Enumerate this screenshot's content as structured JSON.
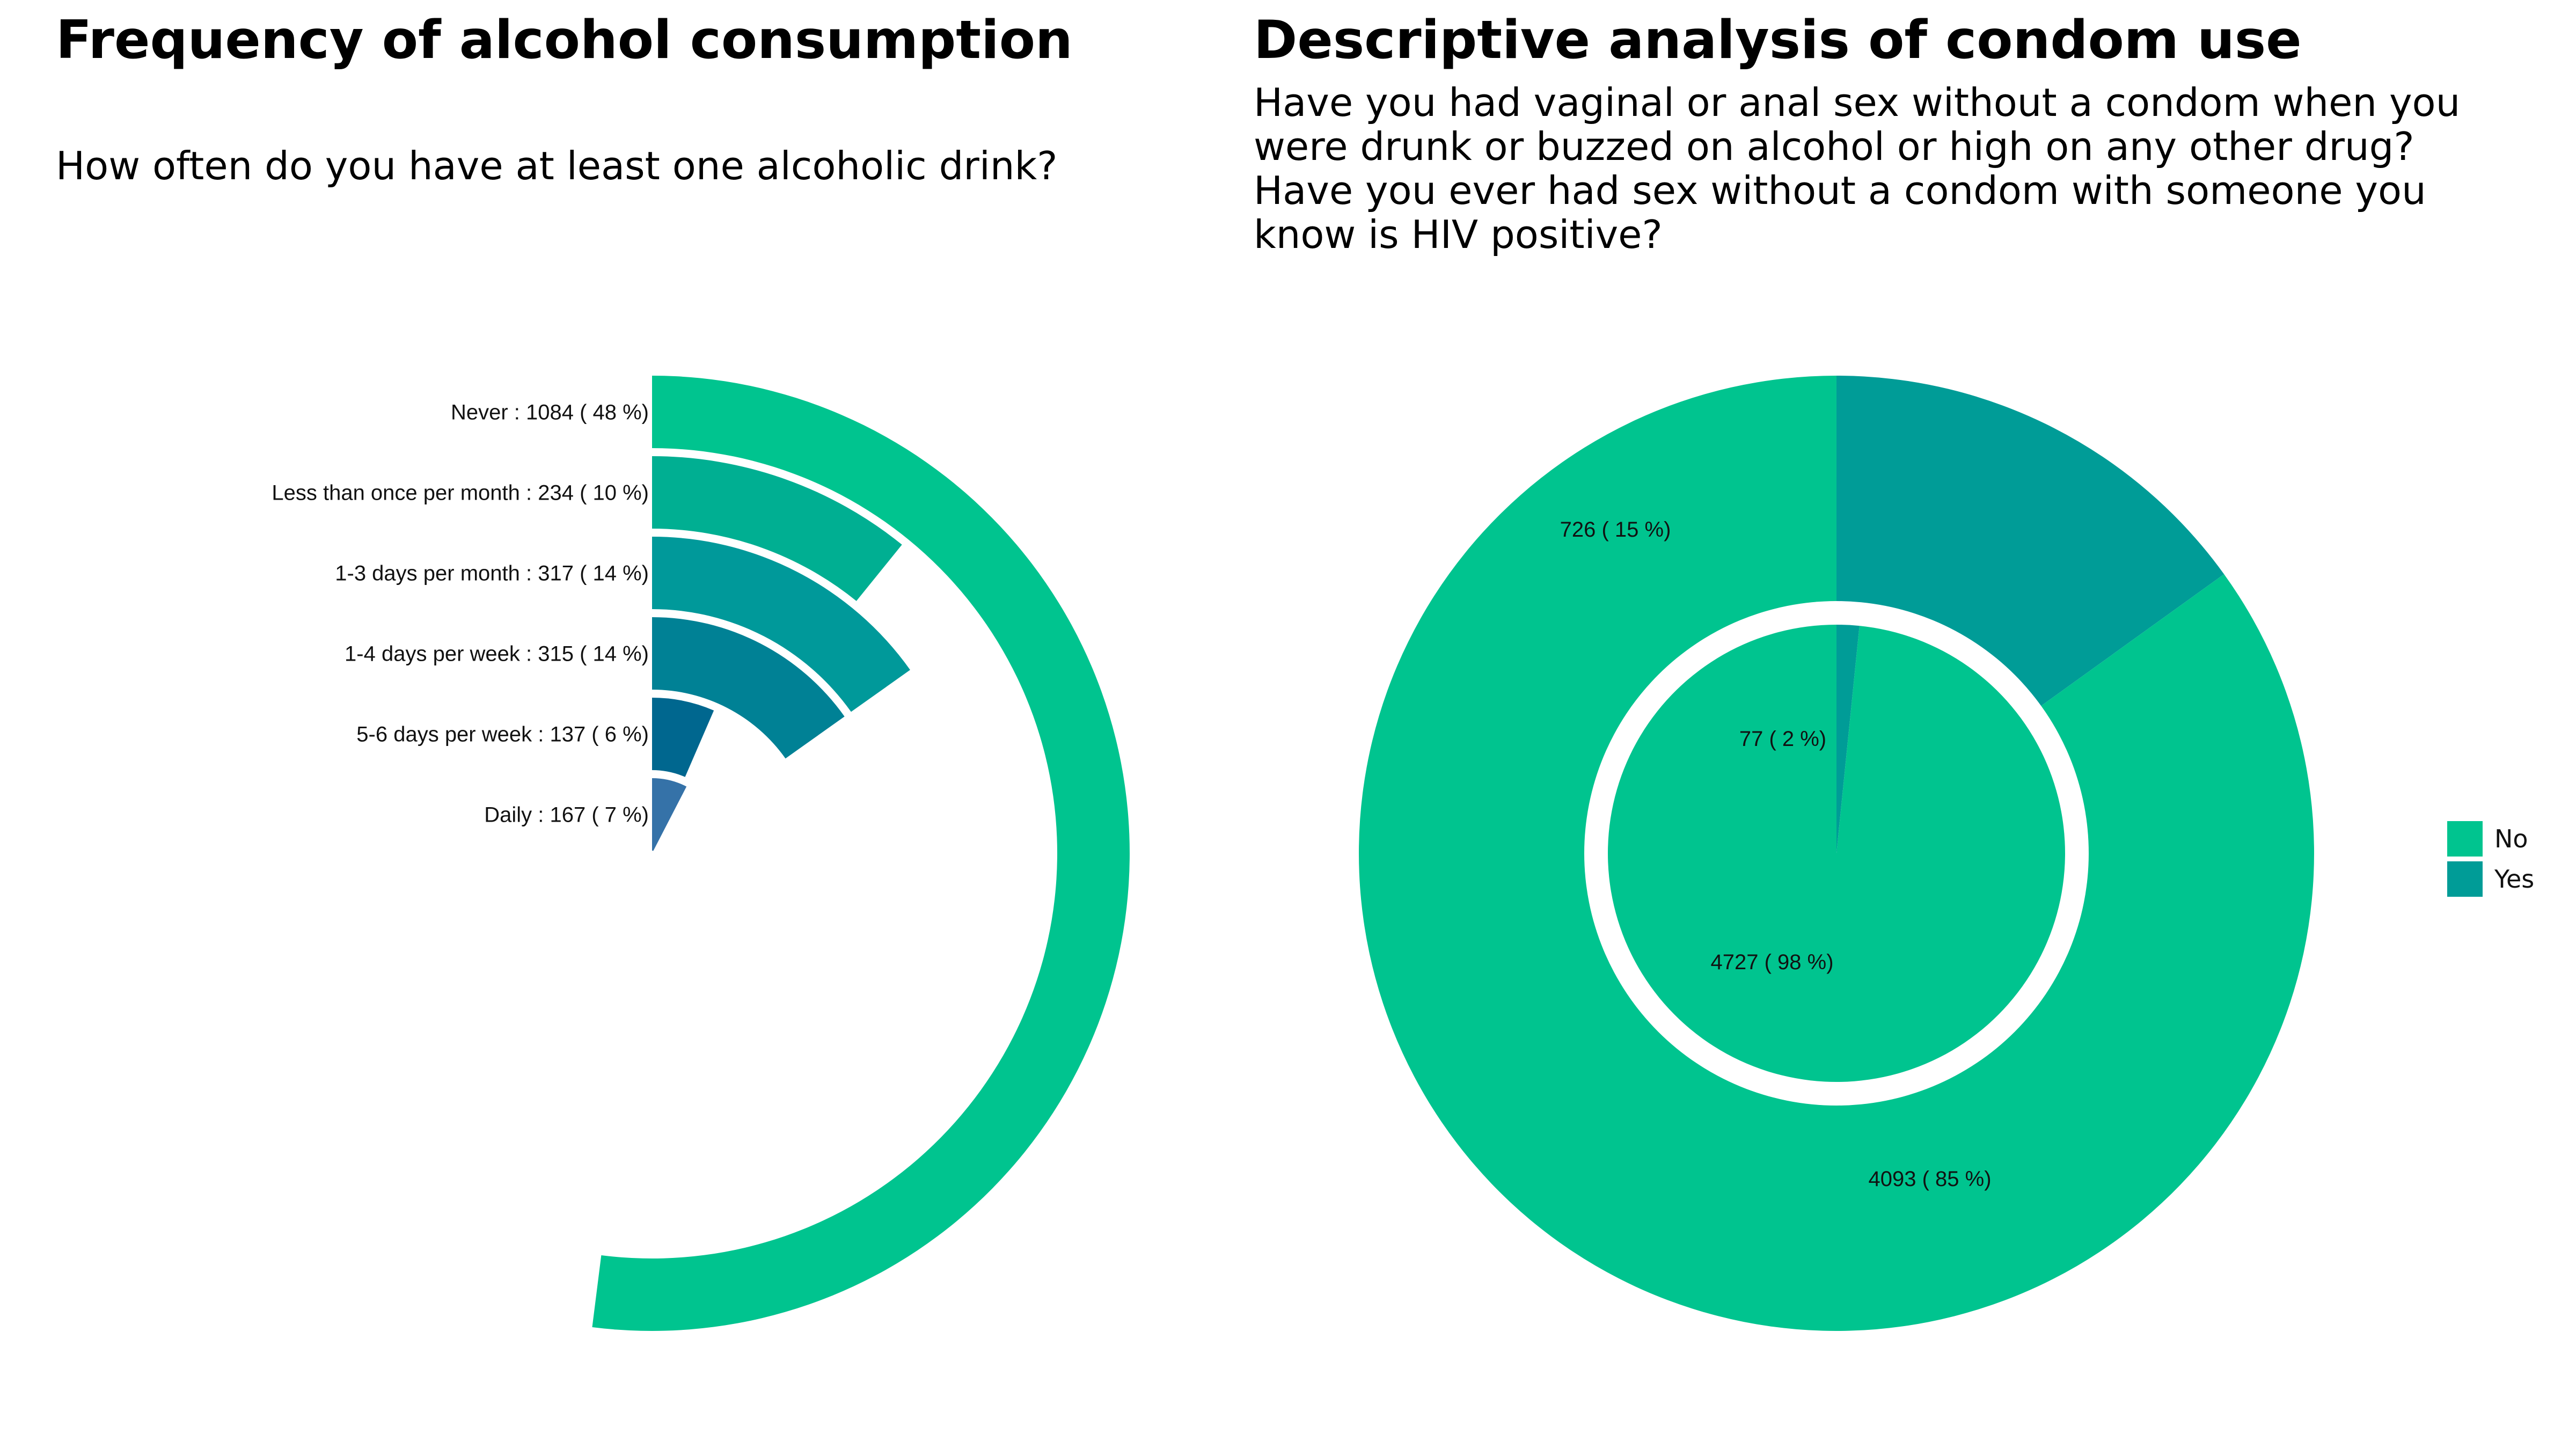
{
  "colors": {
    "green": "#00C48F",
    "teal": "#009C97",
    "ring_palette": [
      "#00C48F",
      "#00AF92",
      "#00999A",
      "#008195",
      "#00678F",
      "#3572A8"
    ]
  },
  "left": {
    "title": "Frequency of alcohol consumption",
    "subtitle": "How often do you have at least one alcoholic drink?"
  },
  "right": {
    "title": "Descriptive analysis of condom use",
    "subtitle_lines": [
      "Have you had vaginal or anal sex without a condom when you",
      "were drunk or buzzed on alcohol or high on any other drug?",
      "Have you ever had sex without a condom with someone you",
      "know is HIV positive?"
    ]
  },
  "legend": [
    {
      "label": "No",
      "color": "#00C48F"
    },
    {
      "label": "Yes",
      "color": "#009C97"
    }
  ],
  "chart_data": [
    {
      "type": "radial-bar",
      "title": "Frequency of alcohol consumption",
      "categories": [
        "Never",
        "Less than once per month",
        "1-3 days per month",
        "1-4 days per week",
        "5-6 days per week",
        "Daily"
      ],
      "values": [
        1084,
        234,
        317,
        315,
        137,
        167
      ],
      "percent": [
        48,
        10,
        14,
        14,
        6,
        7
      ],
      "labels": [
        "Never : 1084 ( 48 %)",
        "Less than once per month : 234 ( 10 %)",
        "1-3 days per month : 317 ( 14 %)",
        "1-4 days per week : 315 ( 14 %)",
        "5-6 days per week : 137 ( 6 %)",
        "Daily : 167 ( 7 %)"
      ],
      "colors": [
        "#00C48F",
        "#00AF92",
        "#00999A",
        "#008195",
        "#00678F",
        "#3572A8"
      ]
    },
    {
      "type": "pie",
      "title": "Descriptive analysis of condom use",
      "rings": [
        {
          "ring": "outer",
          "categories": [
            "No",
            "Yes"
          ],
          "values": [
            4093,
            726
          ],
          "percent": [
            85,
            15
          ],
          "labels": [
            "4093 ( 85 %)",
            "726 ( 15 %)"
          ],
          "colors": [
            "#00C48F",
            "#009C97"
          ]
        },
        {
          "ring": "inner",
          "categories": [
            "No",
            "Yes"
          ],
          "values": [
            4727,
            77
          ],
          "percent": [
            98,
            2
          ],
          "labels": [
            "4727 ( 98 %)",
            "77 ( 2 %)"
          ],
          "colors": [
            "#00C48F",
            "#009C97"
          ]
        }
      ],
      "legend_position": "right"
    }
  ]
}
